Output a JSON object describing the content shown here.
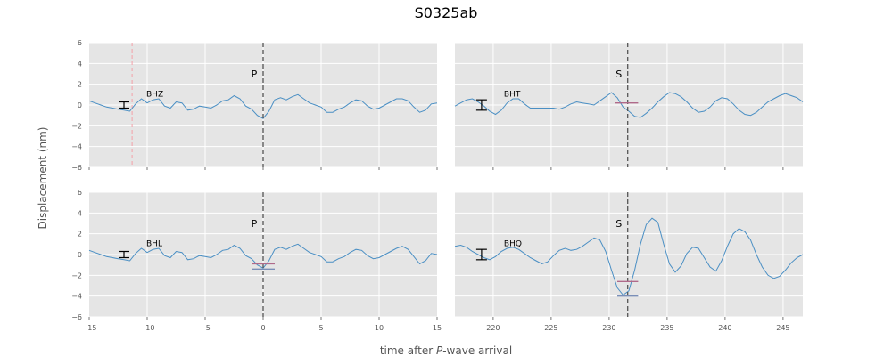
{
  "figure": {
    "title": "S0325ab",
    "ylabel": "Displacement (nm)",
    "xlabel_prefix": "time after ",
    "xlabel_italic": "P",
    "xlabel_suffix": "-wave arrival"
  },
  "colors": {
    "panel_bg": "#e5e5e5",
    "grid": "#ffffff",
    "trace": "#4a8fc4",
    "phase_line": "#555555",
    "pre_line": "#f4a0a8",
    "amp_marker": "#b06a8a",
    "amp_marker2": "#7a8fb8",
    "errorbar": "#000000"
  },
  "chart_data": [
    {
      "type": "line",
      "channel": "BHZ",
      "phase": "P",
      "phase_time": 0,
      "pre_line_time": -11.3,
      "xlim": [
        -15,
        15
      ],
      "ylim": [
        -6,
        6
      ],
      "xticks": [
        -15,
        -10,
        -5,
        0,
        5,
        10,
        15
      ],
      "yticks": [
        -6,
        -4,
        -2,
        0,
        2,
        4,
        6
      ],
      "show_xticks": false,
      "show_yticks": true,
      "errorbar": {
        "x": -12,
        "y": 0,
        "err": 0.3
      },
      "amp_marker": null,
      "x": [
        -15,
        -14.5,
        -14,
        -13.5,
        -13,
        -12.5,
        -12,
        -11.5,
        -11,
        -10.5,
        -10,
        -9.5,
        -9,
        -8.5,
        -8,
        -7.5,
        -7,
        -6.5,
        -6,
        -5.5,
        -5,
        -4.5,
        -4,
        -3.5,
        -3,
        -2.5,
        -2,
        -1.5,
        -1,
        -0.5,
        0,
        0.5,
        1,
        1.5,
        2,
        2.5,
        3,
        3.5,
        4,
        4.5,
        5,
        5.5,
        6,
        6.5,
        7,
        7.5,
        8,
        8.5,
        9,
        9.5,
        10,
        10.5,
        11,
        11.5,
        12,
        12.5,
        13,
        13.5,
        14,
        14.5,
        15
      ],
      "y": [
        0.4,
        0.2,
        0.0,
        -0.2,
        -0.3,
        -0.4,
        -0.5,
        -0.6,
        0.1,
        0.6,
        0.2,
        0.5,
        0.6,
        -0.1,
        -0.3,
        0.3,
        0.2,
        -0.5,
        -0.4,
        -0.1,
        -0.2,
        -0.3,
        0.0,
        0.4,
        0.5,
        0.9,
        0.6,
        -0.1,
        -0.4,
        -1.0,
        -1.3,
        -0.6,
        0.5,
        0.7,
        0.5,
        0.8,
        1.0,
        0.6,
        0.2,
        0.0,
        -0.2,
        -0.7,
        -0.7,
        -0.4,
        -0.2,
        0.2,
        0.5,
        0.4,
        -0.1,
        -0.4,
        -0.3,
        0.0,
        0.3,
        0.6,
        0.6,
        0.4,
        -0.2,
        -0.7,
        -0.5,
        0.1,
        0.2
      ]
    },
    {
      "type": "line",
      "channel": "BHT",
      "phase": "S",
      "phase_time": 231.6,
      "xlim": [
        216.7,
        246.7
      ],
      "ylim": [
        -6,
        6
      ],
      "xticks": [
        220,
        225,
        230,
        235,
        240,
        245
      ],
      "yticks": [
        -6,
        -4,
        -2,
        0,
        2,
        4,
        6
      ],
      "show_xticks": false,
      "show_yticks": false,
      "errorbar": {
        "x": 219,
        "y": 0,
        "err": 0.5
      },
      "amp_marker": {
        "x0": 230.5,
        "x1": 232.5,
        "y": 0.2,
        "color_key": "amp_marker"
      },
      "x": [
        216.7,
        217.2,
        217.7,
        218.2,
        218.7,
        219.2,
        219.7,
        220.2,
        220.7,
        221.2,
        221.7,
        222.2,
        222.7,
        223.2,
        223.7,
        224.2,
        224.7,
        225.2,
        225.7,
        226.2,
        226.7,
        227.2,
        227.7,
        228.2,
        228.7,
        229.2,
        229.7,
        230.2,
        230.7,
        231.2,
        231.7,
        232.2,
        232.7,
        233.2,
        233.7,
        234.2,
        234.7,
        235.2,
        235.7,
        236.2,
        236.7,
        237.2,
        237.7,
        238.2,
        238.7,
        239.2,
        239.7,
        240.2,
        240.7,
        241.2,
        241.7,
        242.2,
        242.7,
        243.2,
        243.7,
        244.2,
        244.7,
        245.2,
        245.7,
        246.2,
        246.7
      ],
      "y": [
        -0.1,
        0.2,
        0.5,
        0.6,
        0.3,
        -0.1,
        -0.6,
        -0.9,
        -0.5,
        0.2,
        0.6,
        0.6,
        0.1,
        -0.3,
        -0.3,
        -0.3,
        -0.3,
        -0.3,
        -0.4,
        -0.2,
        0.1,
        0.3,
        0.2,
        0.1,
        0.0,
        0.4,
        0.8,
        1.2,
        0.7,
        -0.2,
        -0.6,
        -1.1,
        -1.2,
        -0.8,
        -0.3,
        0.3,
        0.8,
        1.2,
        1.1,
        0.8,
        0.3,
        -0.3,
        -0.7,
        -0.6,
        -0.2,
        0.4,
        0.7,
        0.6,
        0.1,
        -0.5,
        -0.9,
        -1.0,
        -0.7,
        -0.2,
        0.3,
        0.6,
        0.9,
        1.1,
        0.9,
        0.7,
        0.3
      ]
    },
    {
      "type": "line",
      "channel": "BHL",
      "phase": "P",
      "phase_time": 0,
      "xlim": [
        -15,
        15
      ],
      "ylim": [
        -6,
        6
      ],
      "xticks": [
        -15,
        -10,
        -5,
        0,
        5,
        10,
        15
      ],
      "xticklabels": [
        "-15",
        "-10",
        "-5",
        "0",
        "5",
        "10",
        "15"
      ],
      "yticks": [
        -6,
        -4,
        -2,
        0,
        2,
        4,
        6
      ],
      "show_xticks": true,
      "show_yticks": true,
      "errorbar": {
        "x": -12,
        "y": 0,
        "err": 0.3
      },
      "amp_marker": {
        "x0": -1,
        "x1": 1,
        "y": -0.9,
        "color_key": "amp_marker"
      },
      "amp_marker_low": {
        "x0": -1,
        "x1": 1,
        "y": -1.4,
        "color_key": "amp_marker2"
      },
      "x": [
        -15,
        -14.5,
        -14,
        -13.5,
        -13,
        -12.5,
        -12,
        -11.5,
        -11,
        -10.5,
        -10,
        -9.5,
        -9,
        -8.5,
        -8,
        -7.5,
        -7,
        -6.5,
        -6,
        -5.5,
        -5,
        -4.5,
        -4,
        -3.5,
        -3,
        -2.5,
        -2,
        -1.5,
        -1,
        -0.5,
        0,
        0.5,
        1,
        1.5,
        2,
        2.5,
        3,
        3.5,
        4,
        4.5,
        5,
        5.5,
        6,
        6.5,
        7,
        7.5,
        8,
        8.5,
        9,
        9.5,
        10,
        10.5,
        11,
        11.5,
        12,
        12.5,
        13,
        13.5,
        14,
        14.5,
        15
      ],
      "y": [
        0.4,
        0.2,
        0.0,
        -0.2,
        -0.3,
        -0.4,
        -0.5,
        -0.6,
        0.1,
        0.6,
        0.2,
        0.5,
        0.6,
        -0.1,
        -0.3,
        0.3,
        0.2,
        -0.5,
        -0.4,
        -0.1,
        -0.2,
        -0.3,
        0.0,
        0.4,
        0.5,
        0.9,
        0.6,
        -0.1,
        -0.4,
        -1.0,
        -1.3,
        -0.6,
        0.5,
        0.7,
        0.5,
        0.8,
        1.0,
        0.6,
        0.2,
        0.0,
        -0.2,
        -0.7,
        -0.7,
        -0.4,
        -0.2,
        0.2,
        0.5,
        0.4,
        -0.1,
        -0.4,
        -0.3,
        0.0,
        0.3,
        0.6,
        0.8,
        0.5,
        -0.2,
        -0.9,
        -0.6,
        0.1,
        0.0
      ]
    },
    {
      "type": "line",
      "channel": "BHQ",
      "phase": "S",
      "phase_time": 231.6,
      "xlim": [
        216.7,
        246.7
      ],
      "ylim": [
        -6,
        6
      ],
      "xticks": [
        220,
        225,
        230,
        235,
        240,
        245
      ],
      "xticklabels": [
        "220",
        "225",
        "230",
        "235",
        "240",
        "245"
      ],
      "yticks": [
        -6,
        -4,
        -2,
        0,
        2,
        4,
        6
      ],
      "show_xticks": true,
      "show_yticks": false,
      "errorbar": {
        "x": 219,
        "y": 0,
        "err": 0.5
      },
      "amp_marker": {
        "x0": 230.7,
        "x1": 232.5,
        "y": -2.6,
        "color_key": "amp_marker"
      },
      "amp_marker_low": {
        "x0": 230.7,
        "x1": 232.5,
        "y": -4.0,
        "color_key": "amp_marker2"
      },
      "x": [
        216.7,
        217.2,
        217.7,
        218.2,
        218.7,
        219.2,
        219.7,
        220.2,
        220.7,
        221.2,
        221.7,
        222.2,
        222.7,
        223.2,
        223.7,
        224.2,
        224.7,
        225.2,
        225.7,
        226.2,
        226.7,
        227.2,
        227.7,
        228.2,
        228.7,
        229.2,
        229.7,
        230.2,
        230.7,
        231.2,
        231.7,
        232.2,
        232.7,
        233.2,
        233.7,
        234.2,
        234.7,
        235.2,
        235.7,
        236.2,
        236.7,
        237.2,
        237.7,
        238.2,
        238.7,
        239.2,
        239.7,
        240.2,
        240.7,
        241.2,
        241.7,
        242.2,
        242.7,
        243.2,
        243.7,
        244.2,
        244.7,
        245.2,
        245.7,
        246.2,
        246.7
      ],
      "y": [
        0.8,
        0.9,
        0.7,
        0.3,
        0.0,
        -0.3,
        -0.5,
        -0.2,
        0.3,
        0.6,
        0.7,
        0.5,
        0.1,
        -0.3,
        -0.6,
        -0.9,
        -0.7,
        -0.1,
        0.4,
        0.6,
        0.4,
        0.5,
        0.8,
        1.2,
        1.6,
        1.4,
        0.3,
        -1.5,
        -3.2,
        -3.9,
        -3.5,
        -1.5,
        1.0,
        2.9,
        3.5,
        3.1,
        1.0,
        -0.9,
        -1.7,
        -1.1,
        0.1,
        0.7,
        0.6,
        -0.3,
        -1.2,
        -1.6,
        -0.6,
        0.8,
        2.0,
        2.5,
        2.2,
        1.4,
        0.0,
        -1.2,
        -2.0,
        -2.3,
        -2.1,
        -1.5,
        -0.8,
        -0.3,
        0.0
      ]
    }
  ]
}
